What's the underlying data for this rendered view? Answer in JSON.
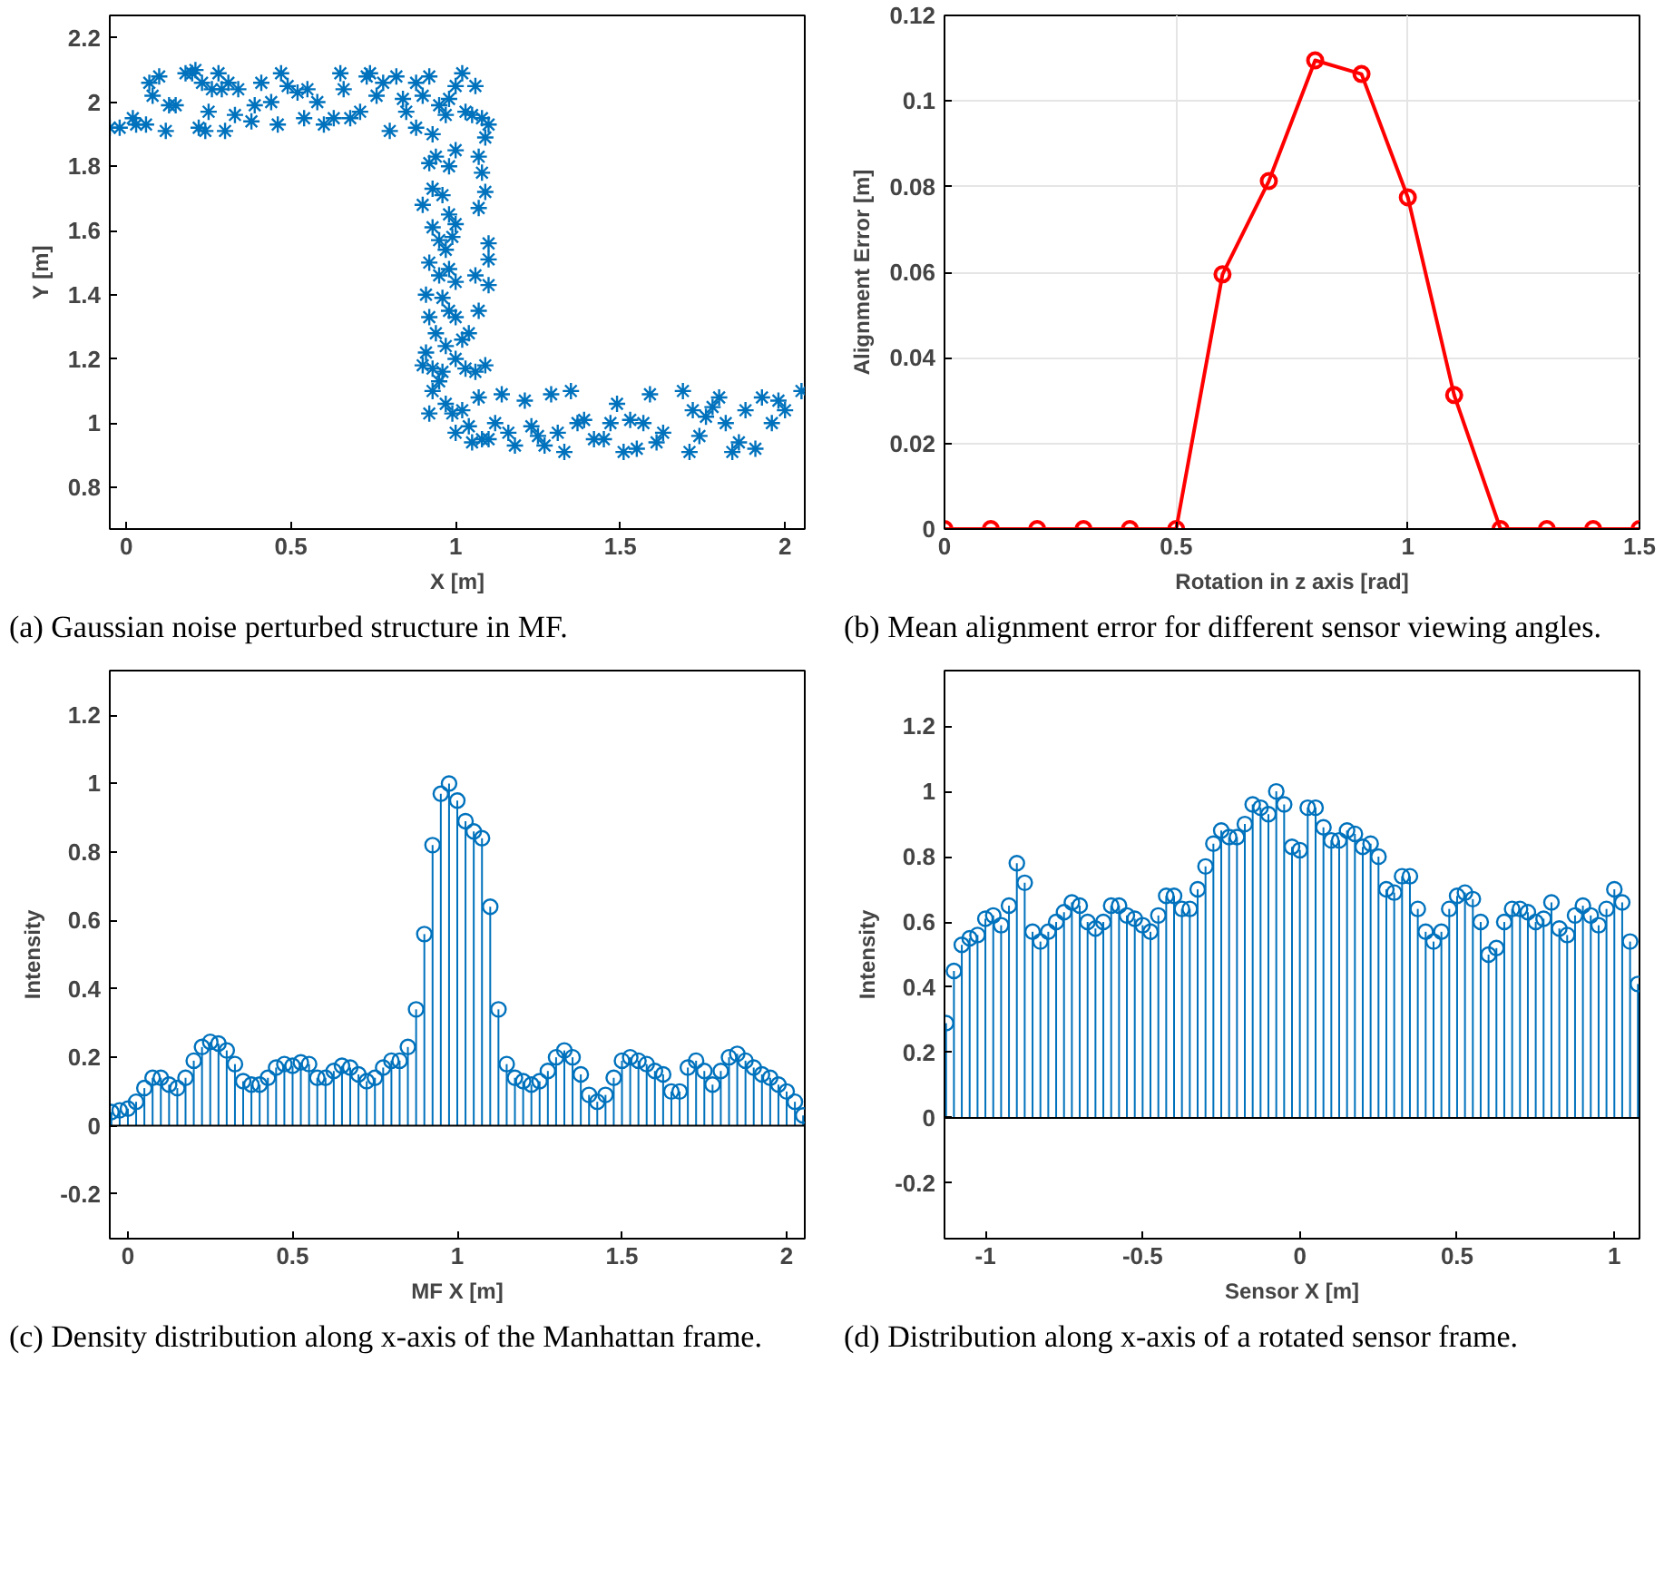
{
  "chart_data": [
    {
      "type": "scatter",
      "xlabel": "X [m]",
      "ylabel": "Y [m]",
      "marker": "cross",
      "grid": false,
      "color": "#0072bd",
      "annotations": [
        "(a) Gaussian noise perturbed structure in MF."
      ],
      "xlim": [
        -0.05,
        2.06
      ],
      "ylim": [
        0.67,
        2.27
      ],
      "xticks": [
        0,
        0.5,
        1,
        1.5,
        2
      ],
      "yticks": [
        0.8,
        1,
        1.2,
        1.4,
        1.6,
        1.8,
        2,
        2.2
      ],
      "x": [
        -0.05,
        -0.02,
        0.02,
        0.03,
        0.06,
        0.07,
        0.08,
        0.1,
        0.12,
        0.13,
        0.15,
        0.18,
        0.2,
        0.21,
        0.22,
        0.23,
        0.24,
        0.25,
        0.26,
        0.28,
        0.29,
        0.3,
        0.31,
        0.33,
        0.34,
        0.38,
        0.39,
        0.41,
        0.44,
        0.46,
        0.47,
        0.49,
        0.52,
        0.54,
        0.55,
        0.58,
        0.6,
        0.63,
        0.65,
        0.66,
        0.68,
        0.71,
        0.73,
        0.74,
        0.76,
        0.78,
        0.8,
        0.82,
        0.84,
        0.85,
        0.88,
        0.88,
        0.9,
        0.92,
        0.93,
        0.95,
        0.97,
        0.98,
        1.0,
        1.02,
        1.03,
        1.05,
        1.06,
        1.08,
        1.1,
        1.09,
        0.92,
        0.94,
        0.98,
        1.0,
        1.07,
        1.08,
        1.09,
        0.9,
        0.93,
        0.96,
        0.98,
        1.0,
        1.07,
        1.1,
        0.93,
        0.95,
        0.97,
        0.99,
        1.1,
        0.92,
        0.95,
        0.98,
        1.0,
        1.06,
        1.1,
        0.91,
        0.96,
        0.98,
        1.0,
        1.07,
        0.92,
        0.94,
        0.97,
        1.02,
        1.04,
        0.91,
        0.93,
        0.96,
        1.0,
        1.03,
        1.06,
        1.09,
        0.9,
        0.92,
        0.93,
        0.95,
        0.97,
        0.99,
        1.0,
        1.02,
        1.04,
        1.05,
        1.07,
        1.08,
        1.1,
        1.12,
        1.14,
        1.16,
        1.18,
        1.21,
        1.23,
        1.25,
        1.27,
        1.29,
        1.31,
        1.33,
        1.35,
        1.37,
        1.39,
        1.42,
        1.45,
        1.47,
        1.49,
        1.51,
        1.53,
        1.55,
        1.57,
        1.59,
        1.61,
        1.63,
        1.69,
        1.71,
        1.72,
        1.74,
        1.76,
        1.78,
        1.8,
        1.82,
        1.84,
        1.86,
        1.88,
        1.91,
        1.93,
        1.96,
        1.98,
        2.0,
        2.05
      ],
      "values": [
        1.92,
        1.92,
        1.95,
        1.93,
        1.93,
        2.06,
        2.02,
        2.08,
        1.91,
        1.99,
        1.99,
        2.09,
        2.09,
        2.1,
        1.92,
        2.06,
        1.91,
        1.97,
        2.04,
        2.09,
        2.04,
        1.91,
        2.06,
        1.96,
        2.04,
        1.94,
        1.99,
        2.06,
        2.0,
        1.93,
        2.09,
        2.05,
        2.03,
        1.95,
        2.04,
        2.0,
        1.93,
        1.95,
        2.09,
        2.04,
        1.95,
        1.97,
        2.08,
        2.09,
        2.02,
        2.06,
        1.91,
        2.08,
        2.01,
        1.97,
        1.92,
        2.06,
        2.02,
        2.08,
        1.9,
        1.99,
        1.96,
        2.01,
        2.05,
        2.09,
        1.97,
        1.96,
        2.05,
        1.95,
        1.93,
        1.89,
        1.81,
        1.83,
        1.8,
        1.85,
        1.83,
        1.78,
        1.72,
        1.68,
        1.73,
        1.71,
        1.65,
        1.62,
        1.67,
        1.56,
        1.61,
        1.57,
        1.54,
        1.58,
        1.51,
        1.5,
        1.46,
        1.48,
        1.44,
        1.46,
        1.43,
        1.4,
        1.39,
        1.35,
        1.33,
        1.35,
        1.33,
        1.28,
        1.24,
        1.26,
        1.28,
        1.22,
        1.17,
        1.16,
        1.2,
        1.17,
        1.16,
        1.18,
        1.18,
        1.03,
        1.1,
        1.13,
        1.06,
        1.03,
        0.97,
        1.04,
        0.99,
        0.94,
        1.08,
        0.95,
        0.95,
        1.0,
        1.09,
        0.97,
        0.93,
        1.07,
        0.99,
        0.96,
        0.93,
        1.09,
        0.97,
        0.91,
        1.1,
        1.0,
        1.01,
        0.95,
        0.95,
        1.0,
        1.06,
        0.91,
        1.01,
        0.92,
        1.0,
        1.09,
        0.94,
        0.97,
        1.1,
        0.91,
        1.04,
        0.96,
        1.02,
        1.05,
        1.08,
        1.0,
        0.91,
        0.94,
        1.04,
        0.92,
        1.08,
        1.0,
        1.07,
        1.04,
        1.1
      ]
    },
    {
      "type": "line",
      "xlabel": "Rotation in z axis [rad]",
      "ylabel": "Alignment Error [m]",
      "marker": "circle",
      "line_style": "solid",
      "grid": true,
      "color": "#ff0000",
      "annotations": [
        "(b) Mean alignment error for different sensor viewing angles."
      ],
      "xlim": [
        0,
        1.5
      ],
      "ylim": [
        0,
        0.12
      ],
      "xticks": [
        0,
        0.5,
        1,
        1.5
      ],
      "yticks": [
        0,
        0.02,
        0.04,
        0.06,
        0.08,
        0.1,
        0.12
      ],
      "x": [
        0,
        0.1,
        0.2,
        0.3,
        0.4,
        0.5,
        0.6,
        0.7,
        0.8,
        0.9,
        1.0,
        1.1,
        1.2,
        1.3,
        1.4,
        1.5
      ],
      "values": [
        0,
        0,
        0,
        0,
        0,
        0,
        0.0595,
        0.0813,
        0.1095,
        0.1063,
        0.0775,
        0.0313,
        0,
        0,
        0,
        0
      ]
    },
    {
      "type": "lollipop",
      "xlabel": "MF X [m]",
      "ylabel": "Intensity",
      "marker": "circle",
      "grid": false,
      "color": "#0072bd",
      "ref_lines": [
        {
          "axis": "y",
          "value": 0,
          "color": "#000000"
        }
      ],
      "annotations": [
        "(c) Density distribution along x-axis of the Manhattan frame."
      ],
      "xlim": [
        -0.055,
        2.055
      ],
      "ylim": [
        -0.33,
        1.33
      ],
      "xticks": [
        0,
        0.5,
        1,
        1.5,
        2
      ],
      "yticks": [
        -0.2,
        0,
        0.2,
        0.4,
        0.6,
        0.8,
        1,
        1.2
      ],
      "x": [
        -0.05,
        -0.025,
        0,
        0.025,
        0.05,
        0.075,
        0.1,
        0.125,
        0.15,
        0.175,
        0.2,
        0.225,
        0.25,
        0.275,
        0.3,
        0.325,
        0.35,
        0.375,
        0.4,
        0.425,
        0.45,
        0.475,
        0.5,
        0.525,
        0.55,
        0.575,
        0.6,
        0.625,
        0.65,
        0.675,
        0.7,
        0.725,
        0.75,
        0.775,
        0.8,
        0.825,
        0.85,
        0.875,
        0.9,
        0.925,
        0.95,
        0.975,
        1.0,
        1.025,
        1.05,
        1.075,
        1.1,
        1.125,
        1.15,
        1.175,
        1.2,
        1.225,
        1.25,
        1.275,
        1.3,
        1.325,
        1.35,
        1.375,
        1.4,
        1.425,
        1.45,
        1.475,
        1.5,
        1.525,
        1.55,
        1.575,
        1.6,
        1.625,
        1.65,
        1.675,
        1.7,
        1.725,
        1.75,
        1.775,
        1.8,
        1.825,
        1.85,
        1.875,
        1.9,
        1.925,
        1.95,
        1.975,
        2.0,
        2.025,
        2.05
      ],
      "values": [
        0.04,
        0.045,
        0.05,
        0.07,
        0.11,
        0.14,
        0.14,
        0.12,
        0.11,
        0.14,
        0.19,
        0.23,
        0.245,
        0.24,
        0.22,
        0.18,
        0.13,
        0.12,
        0.12,
        0.14,
        0.17,
        0.18,
        0.175,
        0.185,
        0.18,
        0.14,
        0.14,
        0.16,
        0.175,
        0.17,
        0.15,
        0.13,
        0.14,
        0.17,
        0.19,
        0.19,
        0.23,
        0.34,
        0.56,
        0.82,
        0.97,
        1.0,
        0.95,
        0.89,
        0.86,
        0.84,
        0.64,
        0.34,
        0.18,
        0.14,
        0.13,
        0.12,
        0.13,
        0.16,
        0.2,
        0.22,
        0.2,
        0.15,
        0.09,
        0.07,
        0.09,
        0.14,
        0.19,
        0.2,
        0.19,
        0.18,
        0.16,
        0.15,
        0.1,
        0.1,
        0.17,
        0.19,
        0.16,
        0.12,
        0.16,
        0.2,
        0.21,
        0.19,
        0.17,
        0.15,
        0.14,
        0.12,
        0.1,
        0.07,
        0.03
      ]
    },
    {
      "type": "lollipop",
      "xlabel": "Sensor X [m]",
      "ylabel": "Intensity",
      "marker": "circle",
      "grid": false,
      "color": "#0072bd",
      "ref_lines": [
        {
          "axis": "y",
          "value": 0,
          "color": "#000000"
        }
      ],
      "annotations": [
        "(d) Distribution along x-axis of a rotated sensor frame."
      ],
      "xlim": [
        -1.13,
        1.08
      ],
      "ylim": [
        -0.37,
        1.37
      ],
      "xticks": [
        -1,
        -0.5,
        0,
        0.5,
        1
      ],
      "yticks": [
        -0.2,
        0,
        0.2,
        0.4,
        0.6,
        0.8,
        1,
        1.2
      ],
      "x": [
        -1.125,
        -1.1,
        -1.075,
        -1.05,
        -1.025,
        -1.0,
        -0.975,
        -0.95,
        -0.925,
        -0.9,
        -0.875,
        -0.85,
        -0.825,
        -0.8,
        -0.775,
        -0.75,
        -0.725,
        -0.7,
        -0.675,
        -0.65,
        -0.625,
        -0.6,
        -0.575,
        -0.55,
        -0.525,
        -0.5,
        -0.475,
        -0.45,
        -0.425,
        -0.4,
        -0.375,
        -0.35,
        -0.325,
        -0.3,
        -0.275,
        -0.25,
        -0.225,
        -0.2,
        -0.175,
        -0.15,
        -0.125,
        -0.1,
        -0.075,
        -0.05,
        -0.025,
        0,
        0.025,
        0.05,
        0.075,
        0.1,
        0.125,
        0.15,
        0.175,
        0.2,
        0.225,
        0.25,
        0.275,
        0.3,
        0.325,
        0.35,
        0.375,
        0.4,
        0.425,
        0.45,
        0.475,
        0.5,
        0.525,
        0.55,
        0.575,
        0.6,
        0.625,
        0.65,
        0.675,
        0.7,
        0.725,
        0.75,
        0.775,
        0.8,
        0.825,
        0.85,
        0.875,
        0.9,
        0.925,
        0.95,
        0.975,
        1.0,
        1.025,
        1.05,
        1.075
      ],
      "values": [
        0.29,
        0.45,
        0.53,
        0.55,
        0.56,
        0.61,
        0.62,
        0.59,
        0.65,
        0.78,
        0.72,
        0.57,
        0.54,
        0.57,
        0.6,
        0.63,
        0.66,
        0.65,
        0.6,
        0.58,
        0.6,
        0.65,
        0.65,
        0.62,
        0.61,
        0.59,
        0.57,
        0.62,
        0.68,
        0.68,
        0.64,
        0.64,
        0.7,
        0.77,
        0.84,
        0.88,
        0.86,
        0.86,
        0.9,
        0.96,
        0.95,
        0.93,
        1.0,
        0.96,
        0.83,
        0.82,
        0.95,
        0.95,
        0.89,
        0.85,
        0.85,
        0.88,
        0.87,
        0.83,
        0.84,
        0.8,
        0.7,
        0.69,
        0.74,
        0.74,
        0.64,
        0.57,
        0.54,
        0.57,
        0.64,
        0.68,
        0.69,
        0.67,
        0.6,
        0.5,
        0.52,
        0.6,
        0.64,
        0.64,
        0.63,
        0.6,
        0.61,
        0.66,
        0.58,
        0.56,
        0.62,
        0.65,
        0.62,
        0.59,
        0.64,
        0.7,
        0.66,
        0.54,
        0.41
      ]
    }
  ]
}
